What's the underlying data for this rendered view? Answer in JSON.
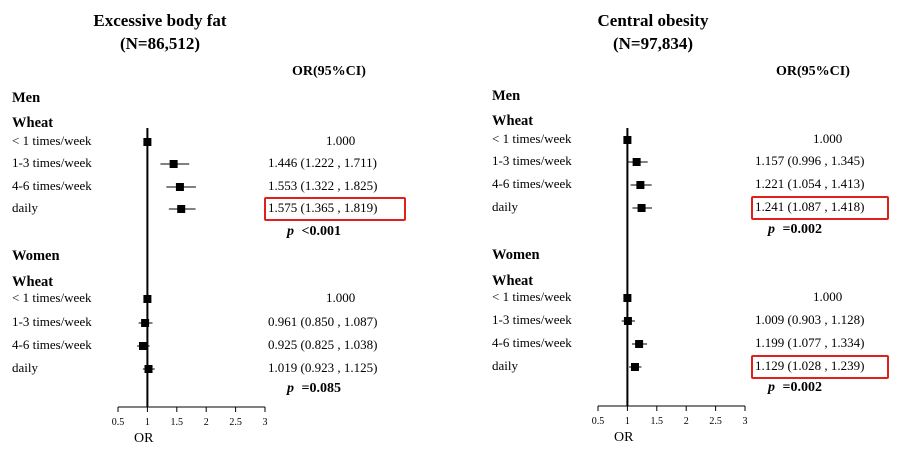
{
  "chart_data": [
    {
      "type": "forest",
      "title": "Excessive body fat",
      "subtitle": "(N=86,512)",
      "ci_header": "OR(95%CI)",
      "xlabel": "OR",
      "xlim": [
        0.5,
        3
      ],
      "xticks": [
        "0.5",
        "1",
        "1.5",
        "2",
        "2.5",
        "3"
      ],
      "reference_line": 1,
      "groups": [
        {
          "sex": "Men",
          "food": "Wheat",
          "p_label": "p",
          "p_value": "<0.001",
          "rows": [
            {
              "label": "< 1 times/week",
              "or": 1.0,
              "lower": 1.0,
              "upper": 1.0,
              "text": "1.000",
              "highlight": false
            },
            {
              "label": "1-3 times/week",
              "or": 1.446,
              "lower": 1.222,
              "upper": 1.711,
              "text": "1.446 (1.222 , 1.711)",
              "highlight": false
            },
            {
              "label": "4-6 times/week",
              "or": 1.553,
              "lower": 1.322,
              "upper": 1.825,
              "text": "1.553 (1.322 , 1.825)",
              "highlight": false
            },
            {
              "label": "daily",
              "or": 1.575,
              "lower": 1.365,
              "upper": 1.819,
              "text": "1.575 (1.365 , 1.819)",
              "highlight": true
            }
          ]
        },
        {
          "sex": "Women",
          "food": "Wheat",
          "p_label": "p",
          "p_value": "=0.085",
          "rows": [
            {
              "label": "< 1 times/week",
              "or": 1.0,
              "lower": 1.0,
              "upper": 1.0,
              "text": "1.000",
              "highlight": false
            },
            {
              "label": "1-3 times/week",
              "or": 0.961,
              "lower": 0.85,
              "upper": 1.087,
              "text": "0.961 (0.850 , 1.087)",
              "highlight": false
            },
            {
              "label": "4-6 times/week",
              "or": 0.925,
              "lower": 0.825,
              "upper": 1.038,
              "text": "0.925 (0.825 , 1.038)",
              "highlight": false
            },
            {
              "label": "daily",
              "or": 1.019,
              "lower": 0.923,
              "upper": 1.125,
              "text": "1.019 (0.923 , 1.125)",
              "highlight": false
            }
          ]
        }
      ]
    },
    {
      "type": "forest",
      "title": "Central obesity",
      "subtitle": "(N=97,834)",
      "ci_header": "OR(95%CI)",
      "xlabel": "OR",
      "xlim": [
        0.5,
        3
      ],
      "xticks": [
        "0.5",
        "1",
        "1.5",
        "2",
        "2.5",
        "3"
      ],
      "reference_line": 1,
      "groups": [
        {
          "sex": "Men",
          "food": "Wheat",
          "p_label": "p",
          "p_value": "=0.002",
          "rows": [
            {
              "label": "< 1 times/week",
              "or": 1.0,
              "lower": 1.0,
              "upper": 1.0,
              "text": "1.000",
              "highlight": false
            },
            {
              "label": "1-3 times/week",
              "or": 1.157,
              "lower": 0.996,
              "upper": 1.345,
              "text": "1.157 (0.996 , 1.345)",
              "highlight": false
            },
            {
              "label": "4-6 times/week",
              "or": 1.221,
              "lower": 1.054,
              "upper": 1.413,
              "text": "1.221 (1.054 , 1.413)",
              "highlight": false
            },
            {
              "label": "daily",
              "or": 1.241,
              "lower": 1.087,
              "upper": 1.418,
              "text": "1.241 (1.087 , 1.418)",
              "highlight": true
            }
          ]
        },
        {
          "sex": "Women",
          "food": "Wheat",
          "p_label": "p",
          "p_value": "=0.002",
          "rows": [
            {
              "label": "< 1 times/week",
              "or": 1.0,
              "lower": 1.0,
              "upper": 1.0,
              "text": "1.000",
              "highlight": false
            },
            {
              "label": "1-3 times/week",
              "or": 1.009,
              "lower": 0.903,
              "upper": 1.128,
              "text": "1.009 (0.903 , 1.128)",
              "highlight": false
            },
            {
              "label": "4-6 times/week",
              "or": 1.199,
              "lower": 1.077,
              "upper": 1.334,
              "text": "1.199 (1.077 , 1.334)",
              "highlight": false
            },
            {
              "label": "daily",
              "or": 1.129,
              "lower": 1.028,
              "upper": 1.239,
              "text": "1.129 (1.028 , 1.239)",
              "highlight": true
            }
          ]
        }
      ]
    }
  ]
}
